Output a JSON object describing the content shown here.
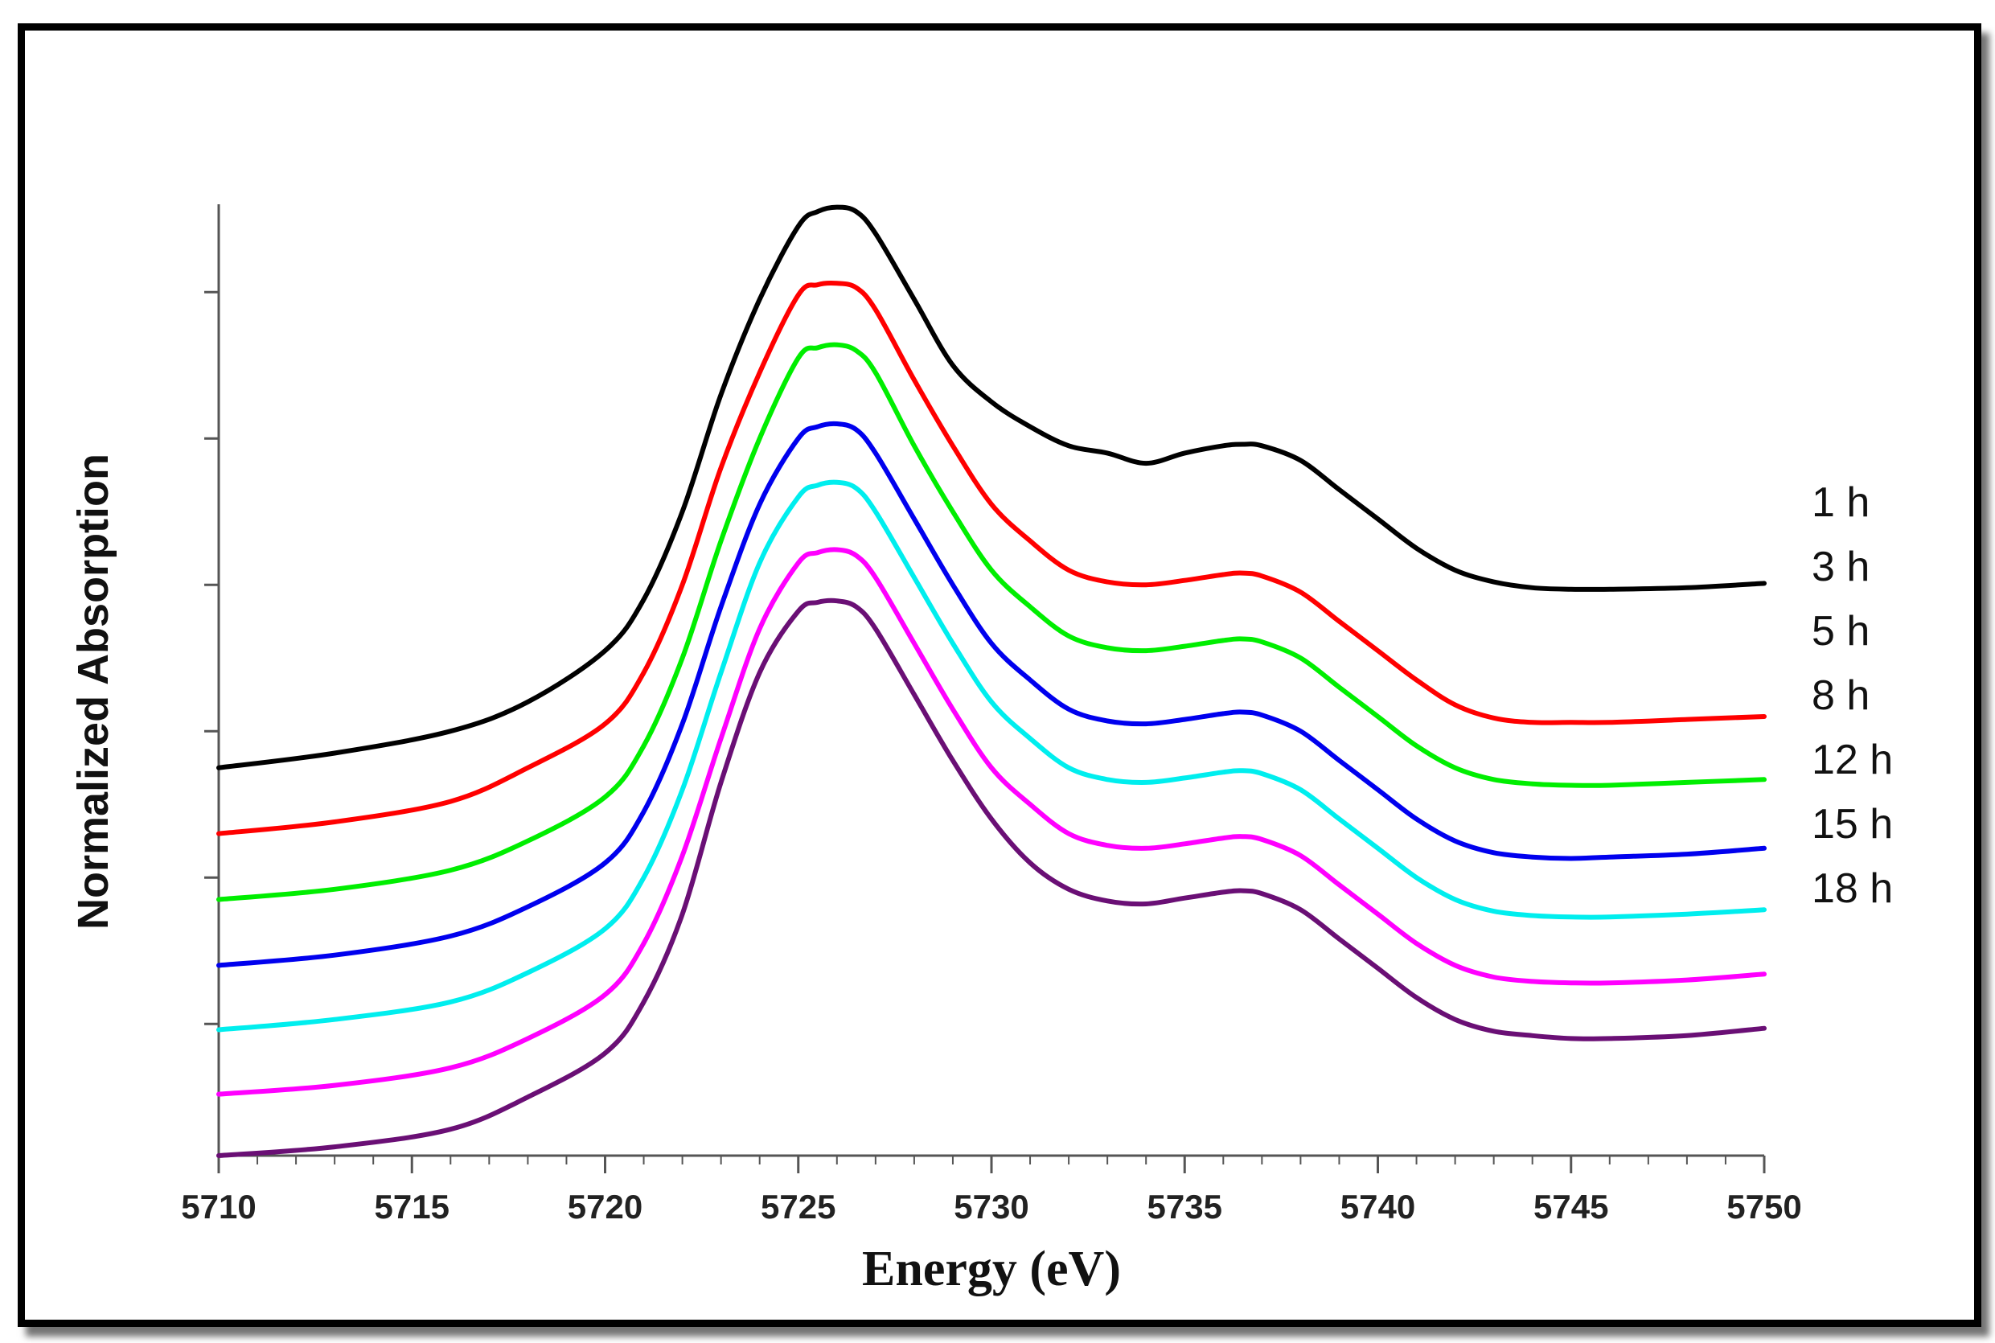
{
  "chart_data": {
    "type": "line",
    "title": "",
    "xlabel": "Energy (eV)",
    "ylabel": "Normalized Absorption",
    "xlim": [
      5710,
      5750
    ],
    "ylim": [
      0,
      7.0
    ],
    "x_ticks": [
      5710,
      5715,
      5720,
      5725,
      5730,
      5735,
      5740,
      5745,
      5750
    ],
    "y_ticks": [
      0.9,
      1.9,
      2.9,
      3.9,
      4.9,
      5.9
    ],
    "y_tick_labels_shown": false,
    "grid": false,
    "legend_placement": "right, inline at line ends",
    "x": [
      5710,
      5713,
      5716,
      5718,
      5720,
      5721,
      5722,
      5723,
      5724,
      5725,
      5725.5,
      5726,
      5726.5,
      5727,
      5728,
      5729,
      5730,
      5731,
      5732,
      5733,
      5734,
      5735,
      5736,
      5736.5,
      5737,
      5738,
      5739,
      5740,
      5741,
      5742,
      5743,
      5744,
      5745,
      5746,
      5748,
      5750
    ],
    "series": [
      {
        "name": "1 h",
        "color": "#000000",
        "values": [
          2.65,
          2.75,
          2.9,
          3.1,
          3.45,
          3.8,
          4.4,
          5.2,
          5.85,
          6.35,
          6.45,
          6.48,
          6.45,
          6.3,
          5.85,
          5.4,
          5.15,
          4.98,
          4.85,
          4.8,
          4.73,
          4.8,
          4.85,
          4.86,
          4.85,
          4.75,
          4.55,
          4.35,
          4.15,
          4.0,
          3.92,
          3.88,
          3.87,
          3.87,
          3.88,
          3.91
        ]
      },
      {
        "name": "3 h",
        "color": "#ff0000",
        "values": [
          2.2,
          2.28,
          2.42,
          2.65,
          2.95,
          3.3,
          3.9,
          4.7,
          5.35,
          5.88,
          5.95,
          5.96,
          5.93,
          5.78,
          5.3,
          4.85,
          4.45,
          4.2,
          4.0,
          3.92,
          3.9,
          3.93,
          3.97,
          3.98,
          3.96,
          3.85,
          3.65,
          3.45,
          3.25,
          3.08,
          2.99,
          2.96,
          2.96,
          2.96,
          2.98,
          3.0
        ]
      },
      {
        "name": "5 h",
        "color": "#00ee00",
        "values": [
          1.75,
          1.82,
          1.95,
          2.15,
          2.45,
          2.8,
          3.4,
          4.2,
          4.9,
          5.45,
          5.52,
          5.54,
          5.5,
          5.35,
          4.85,
          4.4,
          4.0,
          3.75,
          3.55,
          3.47,
          3.45,
          3.48,
          3.52,
          3.53,
          3.51,
          3.4,
          3.2,
          3.0,
          2.8,
          2.65,
          2.57,
          2.54,
          2.53,
          2.53,
          2.55,
          2.57
        ]
      },
      {
        "name": "8 h",
        "color": "#0000ee",
        "values": [
          1.3,
          1.37,
          1.5,
          1.7,
          2.0,
          2.35,
          2.95,
          3.75,
          4.45,
          4.9,
          4.98,
          5.0,
          4.96,
          4.8,
          4.35,
          3.9,
          3.5,
          3.25,
          3.05,
          2.97,
          2.95,
          2.98,
          3.02,
          3.03,
          3.01,
          2.9,
          2.7,
          2.5,
          2.3,
          2.15,
          2.07,
          2.04,
          2.03,
          2.04,
          2.06,
          2.1
        ]
      },
      {
        "name": "12 h",
        "color": "#00eeee",
        "values": [
          0.86,
          0.93,
          1.05,
          1.25,
          1.55,
          1.9,
          2.5,
          3.3,
          4.05,
          4.5,
          4.58,
          4.6,
          4.56,
          4.4,
          3.95,
          3.5,
          3.1,
          2.85,
          2.65,
          2.57,
          2.55,
          2.58,
          2.62,
          2.63,
          2.61,
          2.5,
          2.3,
          2.1,
          1.9,
          1.75,
          1.67,
          1.64,
          1.63,
          1.63,
          1.65,
          1.68
        ]
      },
      {
        "name": "15 h",
        "color": "#ff00ff",
        "values": [
          0.42,
          0.48,
          0.6,
          0.8,
          1.1,
          1.45,
          2.05,
          2.85,
          3.6,
          4.05,
          4.12,
          4.14,
          4.1,
          3.95,
          3.5,
          3.05,
          2.65,
          2.4,
          2.2,
          2.12,
          2.1,
          2.13,
          2.17,
          2.18,
          2.16,
          2.05,
          1.85,
          1.65,
          1.45,
          1.3,
          1.22,
          1.19,
          1.18,
          1.18,
          1.2,
          1.24
        ]
      },
      {
        "name": "18 h",
        "color": "#6a0f75",
        "values": [
          0.0,
          0.06,
          0.18,
          0.4,
          0.7,
          1.05,
          1.65,
          2.55,
          3.3,
          3.72,
          3.78,
          3.79,
          3.75,
          3.6,
          3.15,
          2.7,
          2.3,
          2.0,
          1.82,
          1.74,
          1.72,
          1.76,
          1.8,
          1.81,
          1.79,
          1.68,
          1.48,
          1.28,
          1.08,
          0.93,
          0.85,
          0.82,
          0.8,
          0.8,
          0.82,
          0.87
        ]
      }
    ]
  }
}
